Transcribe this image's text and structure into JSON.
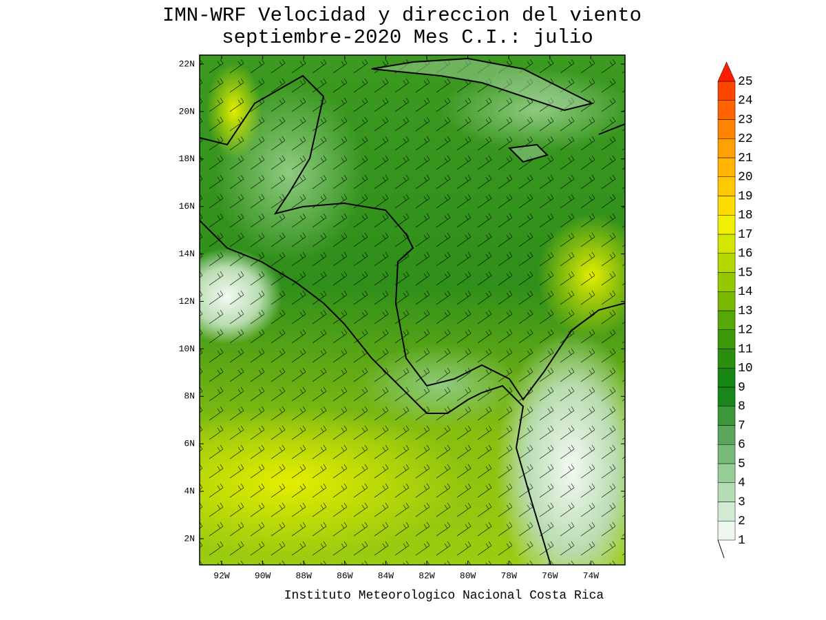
{
  "title": [
    "IMN-WRF Velocidad y direccion del viento",
    "septiembre-2020 Mes C.I.: julio"
  ],
  "map": {
    "lat_ticks": [
      "22N",
      "20N",
      "18N",
      "16N",
      "14N",
      "12N",
      "10N",
      "8N",
      "6N",
      "4N",
      "2N"
    ],
    "lon_ticks": [
      "92W",
      "90W",
      "88W",
      "86W",
      "84W",
      "82W",
      "80W",
      "78W",
      "76W",
      "74W"
    ]
  },
  "colorbar": {
    "levels": [
      1,
      2,
      3,
      4,
      5,
      6,
      7,
      8,
      9,
      10,
      11,
      12,
      13,
      14,
      15,
      16,
      17,
      18,
      19,
      20,
      21,
      22,
      23,
      24,
      25
    ],
    "colors": [
      "#eef7ee",
      "#d2ead2",
      "#b4dcb4",
      "#96cc96",
      "#78b878",
      "#5aa65a",
      "#3c963c",
      "#1a861a",
      "#168516",
      "#2a8f10",
      "#3c9a0a",
      "#55a805",
      "#78b800",
      "#96c800",
      "#b4d800",
      "#d2e600",
      "#f0f000",
      "#ffdc00",
      "#ffc800",
      "#ffb400",
      "#ffa000",
      "#ff8200",
      "#ff6400",
      "#ff4600",
      "#ff1e00"
    ]
  },
  "footer": "Instituto Meteorologico Nacional Costa Rica"
}
